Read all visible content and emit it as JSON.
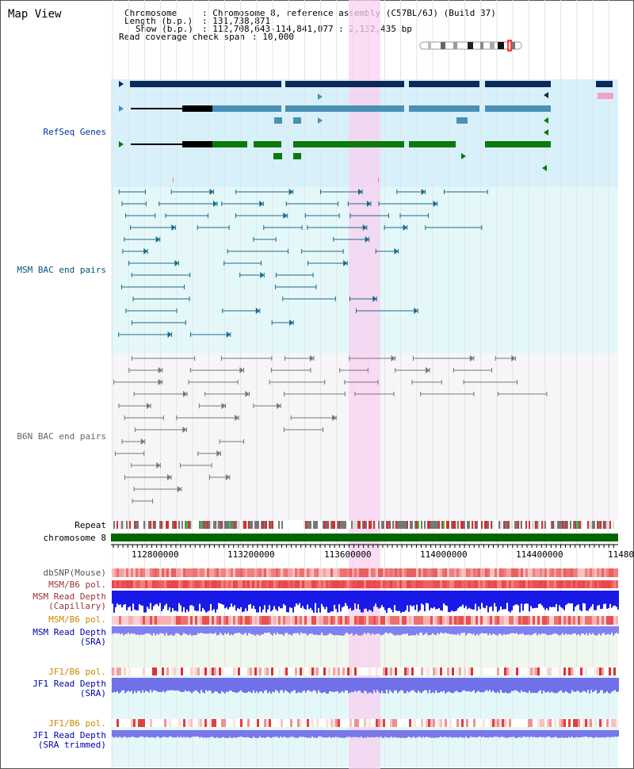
{
  "title": "Map View",
  "info": {
    "chromosome_label": "Chromosome",
    "chromosome_value": ": Chromosome 8, reference assembly (C57BL/6J) (Build 37)",
    "length_label": "Length (b.p.)",
    "length_value": ": 131,738,871",
    "show_label": "Show (b.p.)",
    "show_value": ": 112,708,643-114,841,077 : 2,132,435 bp",
    "coverage_label": "Read coverage check span",
    "coverage_value": ": 10,000"
  },
  "tracks": {
    "refseq": "RefSeq Genes",
    "msm_bac": "MSM BAC end pairs",
    "b6n_bac": "B6N BAC end pairs",
    "repeat": "Repeat",
    "chromosome": "chromosome 8",
    "dbsnp": "dbSNP(Mouse)",
    "msm_b6_pol_1": "MSM/B6 pol.",
    "msm_read_depth_cap_1": "MSM Read Depth",
    "msm_read_depth_cap_2": "(Capillary)",
    "msm_b6_pol_2": "MSM/B6 pol.",
    "msm_read_depth_sra_1": "MSM Read Depth",
    "msm_read_depth_sra_2": "(SRA)",
    "jf1_b6_pol_1": "JF1/B6 pol.",
    "jf1_read_depth_sra_1": "JF1 Read Depth",
    "jf1_read_depth_sra_2": "(SRA)",
    "jf1_b6_pol_2": "JF1/B6 pol.",
    "jf1_read_depth_trim_1": "JF1 Read Depth",
    "jf1_read_depth_trim_2": "(SRA trimmed)"
  },
  "axis_ticks": [
    "112800000",
    "113200000",
    "113600000",
    "114000000",
    "114400000",
    "11480"
  ],
  "colors": {
    "refseq_label": "#003399",
    "msm_label": "#005577",
    "b6n_label": "#666666",
    "orange_label": "#cc8800",
    "blue_label": "#0000aa",
    "refseq_bg": "#d8f0fa",
    "msm_bg": "#e2f8fa",
    "highlight": "#f8d0f0",
    "chromosome_bar": "#006600"
  }
}
